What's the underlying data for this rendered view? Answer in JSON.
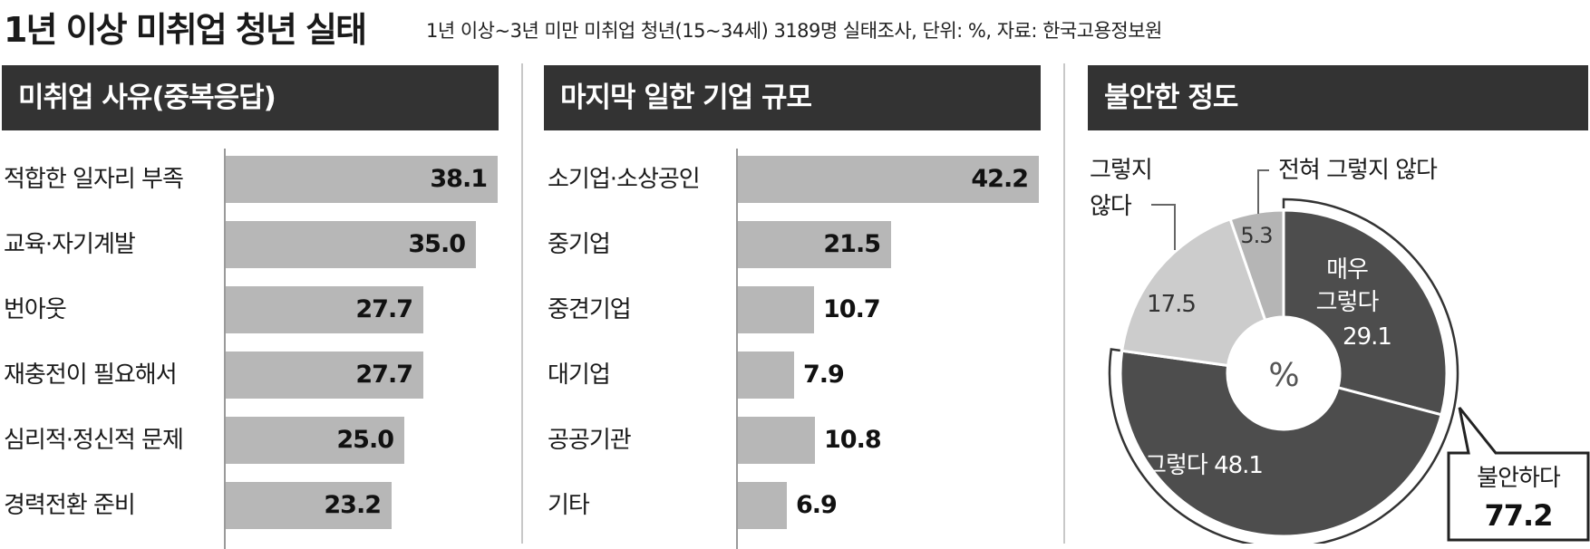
{
  "header": {
    "title": "1년 이상 미취업 청년 실태",
    "subtitle": "1년 이상~3년 미만 미취업 청년(15~34세) 3189명 실태조사, 단위: %, 자료: 한국고용정보원"
  },
  "chart_data": [
    {
      "type": "bar",
      "orientation": "horizontal",
      "title": "미취업 사유(중복응답)",
      "categories": [
        "적합한 일자리 부족",
        "교육·자기계발",
        "번아웃",
        "재충전이 필요해서",
        "심리적·정신적 문제",
        "경력전환 준비"
      ],
      "values": [
        38.1,
        35.0,
        27.7,
        27.7,
        25.0,
        23.2
      ],
      "value_labels": [
        "38.1",
        "35.0",
        "27.7",
        "27.7",
        "25.0",
        "23.2"
      ],
      "xlim": [
        0,
        38.1
      ],
      "grid": false,
      "colors": {
        "bar": "#b7b7b7",
        "header": "#333333"
      }
    },
    {
      "type": "bar",
      "orientation": "horizontal",
      "title": "마지막 일한 기업 규모",
      "categories": [
        "소기업·소상공인",
        "중기업",
        "중견기업",
        "대기업",
        "공공기관",
        "기타"
      ],
      "values": [
        42.2,
        21.5,
        10.7,
        7.9,
        10.8,
        6.9
      ],
      "value_labels": [
        "42.2",
        "21.5",
        "10.7",
        "7.9",
        "10.8",
        "6.9"
      ],
      "xlim": [
        0,
        42.2
      ],
      "grid": false,
      "colors": {
        "bar": "#b7b7b7",
        "header": "#333333"
      }
    },
    {
      "type": "pie",
      "donut": true,
      "title": "불안한 정도",
      "center_label": "%",
      "slices": [
        {
          "label_lines": [
            "매우",
            "그렇다"
          ],
          "value": 29.1,
          "value_label": "29.1",
          "color": "#4d4d4d"
        },
        {
          "label_lines": [
            "그렇다"
          ],
          "value": 48.1,
          "value_label": "48.1",
          "color": "#4d4d4d"
        },
        {
          "label_lines": [
            "그렇지",
            "않다"
          ],
          "value": 17.5,
          "value_label": "17.5",
          "color": "#cccccc"
        },
        {
          "label_lines": [
            "전혀 그렇지 않다"
          ],
          "value": 5.3,
          "value_label": "5.3",
          "color": "#b5b5b5"
        }
      ],
      "summary": {
        "label": "불안하다",
        "value": 77.2,
        "value_label": "77.2"
      }
    }
  ]
}
